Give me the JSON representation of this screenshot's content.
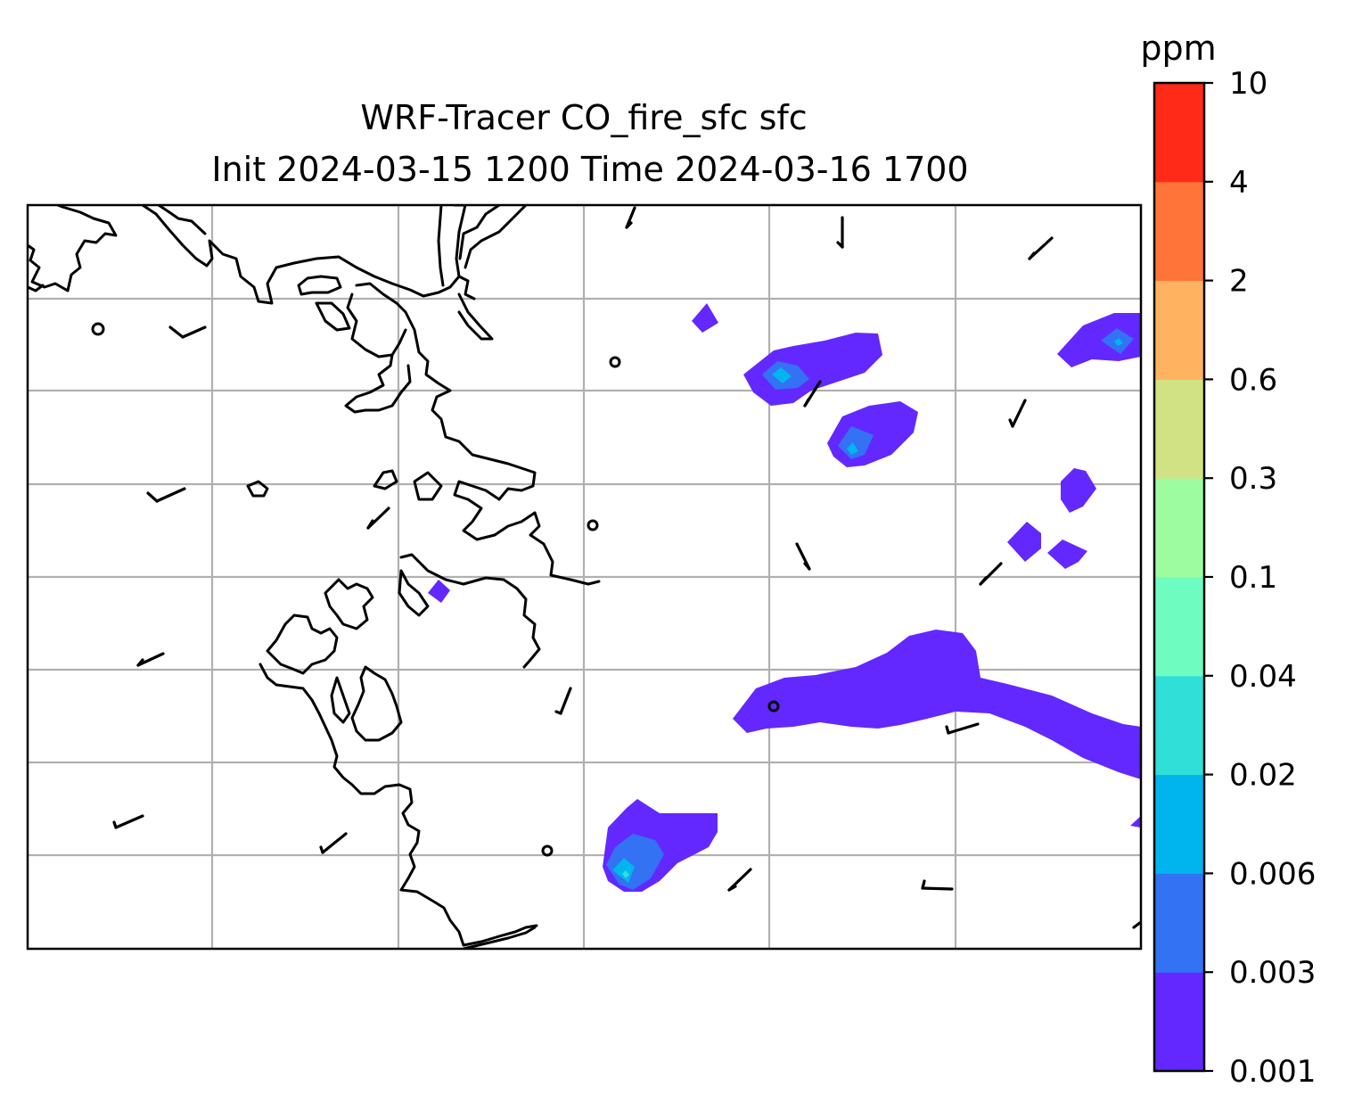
{
  "title": {
    "line1": "WRF-Tracer CO_fire_sfc sfc",
    "line2": "Init 2024-03-15 1200 Time 2024-03-16 1700"
  },
  "colorbar": {
    "unit": "ppm",
    "levels": [
      "0.001",
      "0.003",
      "0.006",
      "0.02",
      "0.04",
      "0.1",
      "0.3",
      "0.6",
      "2",
      "4",
      "10"
    ],
    "colors": [
      "#6228ff",
      "#3372f2",
      "#00b5ee",
      "#30dfd8",
      "#6ffcc0",
      "#9dfc9f",
      "#d0e284",
      "#ffb360",
      "#ff7438",
      "#ff2a18"
    ]
  },
  "map": {
    "coastline_color": "#000000",
    "gridline_color": "#b0b0b0",
    "fill_colors": {
      "0.001-0.003": "#6228ff",
      "0.003-0.006": "#3372f2",
      "0.006-0.02": "#00b5ee",
      "0.02-0.04": "#30dfd8"
    },
    "wind_barbs": "present",
    "gridlines": "on"
  }
}
